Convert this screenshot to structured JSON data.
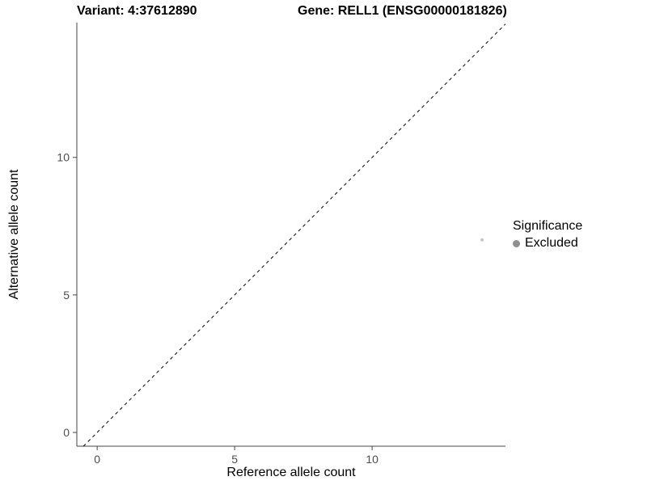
{
  "title": {
    "left": "Variant: 4:37612890",
    "right": "Gene: RELL1 (ENSG00000181826)"
  },
  "chart_data": {
    "type": "scatter",
    "title_left": "Variant: 4:37612890",
    "title_right": "Gene: RELL1 (ENSG00000181826)",
    "xlabel": "Reference allele count",
    "ylabel": "Alternative allele count",
    "xlim": [
      -0.74,
      14.85
    ],
    "ylim": [
      -0.5,
      14.9
    ],
    "xticks": [
      0,
      5,
      10
    ],
    "yticks": [
      0,
      5,
      10
    ],
    "grid": false,
    "identity_line": {
      "style": "dashed",
      "equation": "y = x",
      "color": "#000000"
    },
    "points": [
      {
        "x": 14,
        "y": 7,
        "series": "Excluded"
      }
    ],
    "point_color": "#c6c6c6",
    "point_radius": 2,
    "axis_line_color": "#464646",
    "tick_label_color": "#4d4d4d",
    "legend": {
      "title": "Significance",
      "position": "right",
      "entries": [
        {
          "label": "Excluded",
          "color": "#8f8f8f"
        }
      ]
    }
  }
}
